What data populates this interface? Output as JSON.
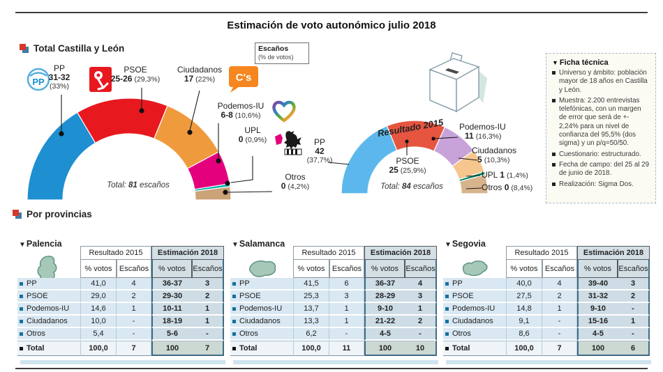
{
  "ui": {
    "triangle": "▼"
  },
  "title": "Estimación de voto autonómico julio 2018",
  "section1": {
    "title": "Total Castilla y León",
    "escanos_box": {
      "line1": "Escaños",
      "line2": "(% de votos)"
    }
  },
  "icons": {
    "pp_label": "PP",
    "cs_label": "C's"
  },
  "provincias": {
    "title": "Por provincias"
  },
  "ficha": {
    "title": "Ficha técnica",
    "items": [
      "Universo y ámbito: población mayor de 18 años en Castilla y León.",
      "Muestra: 2.200 entrevistas telefónicas, con un margen de error que será de +- 2,24% para un nivel de confianza del 95,5% (dos sigma) y un p/q=50/50.",
      "Cuestionario: estructurado.",
      "Fecha de campo: del 25 al 29 de junio de 2018.",
      "Realización: Sigma Dos."
    ]
  },
  "chart_data": [
    {
      "type": "donut-semicircle",
      "title": "Total Castilla y León",
      "subtitle": "Estimación julio 2018",
      "total_prefix": "Total:",
      "total_value": "81",
      "total_suffix": "escaños",
      "series": [
        {
          "name": "PP",
          "seats": "31-32",
          "pct": 33.0,
          "pct_label": "(33%)",
          "color": "#1e8fd0"
        },
        {
          "name": "PSOE",
          "seats": "25-26",
          "pct": 29.3,
          "pct_label": "(29,3%)",
          "color": "#e7191f"
        },
        {
          "name": "Ciudadanos",
          "seats": "17",
          "pct": 22.0,
          "pct_label": "(22%)",
          "color": "#f09a3e"
        },
        {
          "name": "Podemos-IU",
          "seats": "6-8",
          "pct": 10.6,
          "pct_label": "(10,6%)",
          "color": "#e4007d"
        },
        {
          "name": "UPL",
          "seats": "0",
          "pct": 0.9,
          "pct_label": "(0,9%)",
          "color": "#00b2a9"
        },
        {
          "name": "Otros",
          "seats": "0",
          "pct": 4.2,
          "pct_label": "(4,2%)",
          "color": "#cba377"
        }
      ]
    },
    {
      "type": "donut-semicircle",
      "title": "Resultado 2015",
      "total_prefix": "Total:",
      "total_value": "84",
      "total_suffix": "escaños",
      "series": [
        {
          "name": "PP",
          "seats": "42",
          "pct": 37.7,
          "pct_label": "(37,7%)",
          "color": "#5cb8ec"
        },
        {
          "name": "PSOE",
          "seats": "25",
          "pct": 25.9,
          "pct_label": "(25,9%)",
          "color": "#e65540"
        },
        {
          "name": "Podemos-IU",
          "seats": "11",
          "pct": 16.3,
          "pct_label": "(16,3%)",
          "color": "#c7a3da"
        },
        {
          "name": "Ciudadanos",
          "seats": "5",
          "pct": 10.3,
          "pct_label": "(10,3%)",
          "color": "#f6c68f"
        },
        {
          "name": "UPL",
          "seats": "1",
          "pct": 1.4,
          "pct_label": "(1,4%)",
          "color": "#00875f"
        },
        {
          "name": "Otros",
          "seats": "0",
          "pct": 8.4,
          "pct_label": "(8,4%)",
          "color": "#d6b48c"
        }
      ]
    },
    {
      "type": "table",
      "title": "Palencia",
      "col_groups": [
        "Resultado 2015",
        "Estimación 2018"
      ],
      "sub_cols": [
        "% votos",
        "Escaños",
        "% votos",
        "Escaños"
      ],
      "rows": [
        [
          "PP",
          "41,0",
          "4",
          "36-37",
          "3"
        ],
        [
          "PSOE",
          "29,0",
          "2",
          "29-30",
          "2"
        ],
        [
          "Podemos-IU",
          "14,6",
          "1",
          "10-11",
          "1"
        ],
        [
          "Ciudadanos",
          "10,0",
          "-",
          "18-19",
          "1"
        ],
        [
          "Otros",
          "5,4",
          "-",
          "5-6",
          "-"
        ]
      ],
      "total_row": [
        "Total",
        "100,0",
        "7",
        "100",
        "7"
      ]
    },
    {
      "type": "table",
      "title": "Salamanca",
      "col_groups": [
        "Resultado 2015",
        "Estimación 2018"
      ],
      "sub_cols": [
        "% votos",
        "Escaños",
        "% votos",
        "Escaños"
      ],
      "rows": [
        [
          "PP",
          "41,5",
          "6",
          "36-37",
          "4"
        ],
        [
          "PSOE",
          "25,3",
          "3",
          "28-29",
          "3"
        ],
        [
          "Podemos-IU",
          "13,7",
          "1",
          "9-10",
          "1"
        ],
        [
          "Ciudadanos",
          "13,3",
          "1",
          "21-22",
          "2"
        ],
        [
          "Otros",
          "6,2",
          "-",
          "4-5",
          "-"
        ]
      ],
      "total_row": [
        "Total",
        "100,0",
        "11",
        "100",
        "10"
      ]
    },
    {
      "type": "table",
      "title": "Segovia",
      "col_groups": [
        "Resultado 2015",
        "Estimación 2018"
      ],
      "sub_cols": [
        "% votos",
        "Escaños",
        "% votos",
        "Escaños"
      ],
      "rows": [
        [
          "PP",
          "40,0",
          "4",
          "39-40",
          "3"
        ],
        [
          "PSOE",
          "27,5",
          "2",
          "31-32",
          "2"
        ],
        [
          "Podemos-IU",
          "14,8",
          "1",
          "9-10",
          "-"
        ],
        [
          "Ciudadanos",
          "9,1",
          "-",
          "15-16",
          "1"
        ],
        [
          "Otros",
          "8,6",
          "-",
          "4-5",
          "-"
        ]
      ],
      "total_row": [
        "Total",
        "100,0",
        "7",
        "100",
        "6"
      ]
    }
  ]
}
